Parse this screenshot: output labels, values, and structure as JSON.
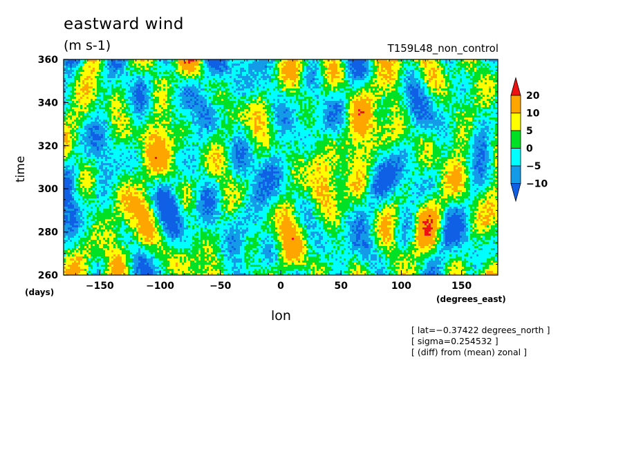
{
  "chart_data": {
    "type": "heatmap",
    "title": "eastward wind",
    "units": "(m s-1)",
    "run_label": "T159L48_non_control",
    "xlabel": "lon",
    "ylabel": "time",
    "xunit": "(degrees_east)",
    "yunit": "(days)",
    "xlim": [
      -180,
      180
    ],
    "ylim": [
      260,
      360
    ],
    "xticks": [
      -150,
      -100,
      -50,
      0,
      50,
      100,
      150
    ],
    "yticks": [
      260,
      280,
      300,
      320,
      340,
      360
    ],
    "colorbar": {
      "levels": [
        -10,
        -5,
        0,
        5,
        10,
        20
      ],
      "level_labels": [
        "20",
        "10",
        "5",
        "0",
        "−5",
        "−10"
      ],
      "colors": [
        "#1060e6",
        "#139be8",
        "#00ffff",
        "#00e024",
        "#ffff00",
        "#ffa500",
        "#ee1111"
      ],
      "extend": "both"
    },
    "annotations": [
      "[ lat=−0.37422 degrees_north ]",
      "[ sigma=0.254532 ]",
      "[ (diff) from (mean) zonal ]"
    ]
  }
}
